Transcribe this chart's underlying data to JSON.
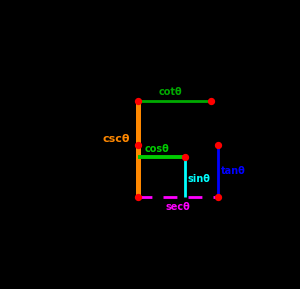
{
  "theta_deg": 40,
  "background": "#000000",
  "colors": {
    "sin": "#00ffff",
    "cos": "#00cc00",
    "tan": "#0000ff",
    "csc": "#ff8800",
    "sec": "#ff00ff",
    "cot": "#00aa00",
    "point": "#ff0000"
  },
  "labels": {
    "sin": "sinθ",
    "cos": "cosθ",
    "tan": "tanθ",
    "csc": "cscθ",
    "sec": "secθ",
    "cot": "cotθ"
  },
  "figsize": [
    3.0,
    2.89
  ],
  "dpi": 100,
  "xlim": [
    -1.8,
    2.2
  ],
  "ylim": [
    -1.5,
    3.2
  ]
}
